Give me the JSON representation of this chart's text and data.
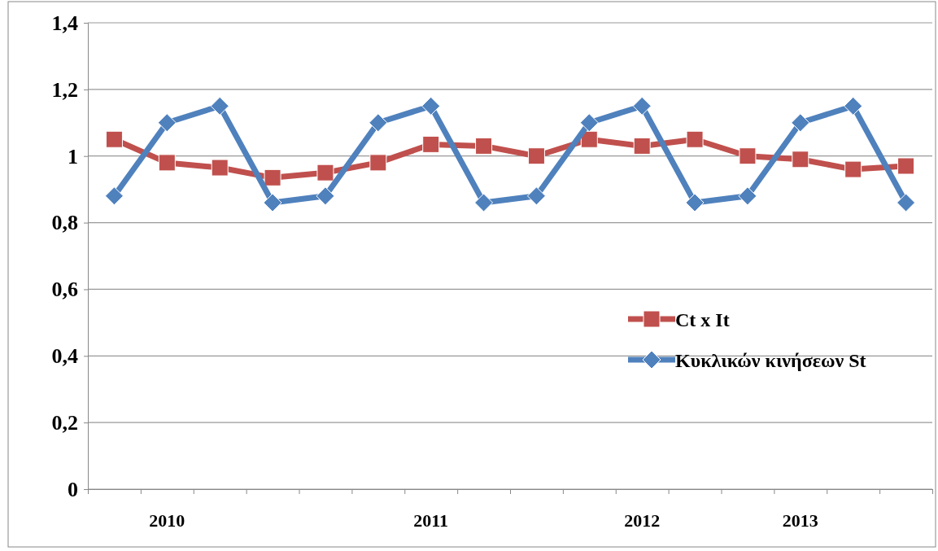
{
  "chart_data": {
    "type": "line",
    "categories": [
      null,
      "2010",
      null,
      null,
      null,
      null,
      "2011",
      null,
      null,
      null,
      "2012",
      null,
      null,
      "2013",
      null,
      null
    ],
    "series": [
      {
        "name": "Ct x It",
        "color": "#c0504d",
        "marker": "square",
        "values": [
          1.05,
          0.98,
          0.965,
          0.935,
          0.95,
          0.98,
          1.035,
          1.03,
          1.0,
          1.05,
          1.03,
          1.05,
          1.0,
          0.99,
          0.96,
          0.97
        ]
      },
      {
        "name": "Κυκλικών κινήσεων St",
        "color": "#4f81bd",
        "marker": "diamond",
        "values": [
          0.88,
          1.1,
          1.15,
          0.86,
          0.88,
          1.1,
          1.15,
          0.86,
          0.88,
          1.1,
          1.15,
          0.86,
          0.88,
          1.1,
          1.15,
          0.86
        ]
      }
    ],
    "ylim": [
      0,
      1.4
    ],
    "yticks": [
      {
        "value": 0,
        "label": "0"
      },
      {
        "value": 0.2,
        "label": "0,2"
      },
      {
        "value": 0.4,
        "label": "0,4"
      },
      {
        "value": 0.6,
        "label": "0,6"
      },
      {
        "value": 0.8,
        "label": "0,8"
      },
      {
        "value": 1,
        "label": "1"
      },
      {
        "value": 1.2,
        "label": "1,2"
      },
      {
        "value": 1.4,
        "label": "1,4"
      }
    ],
    "grid": "y",
    "legend": "right",
    "line_style": "solid"
  }
}
